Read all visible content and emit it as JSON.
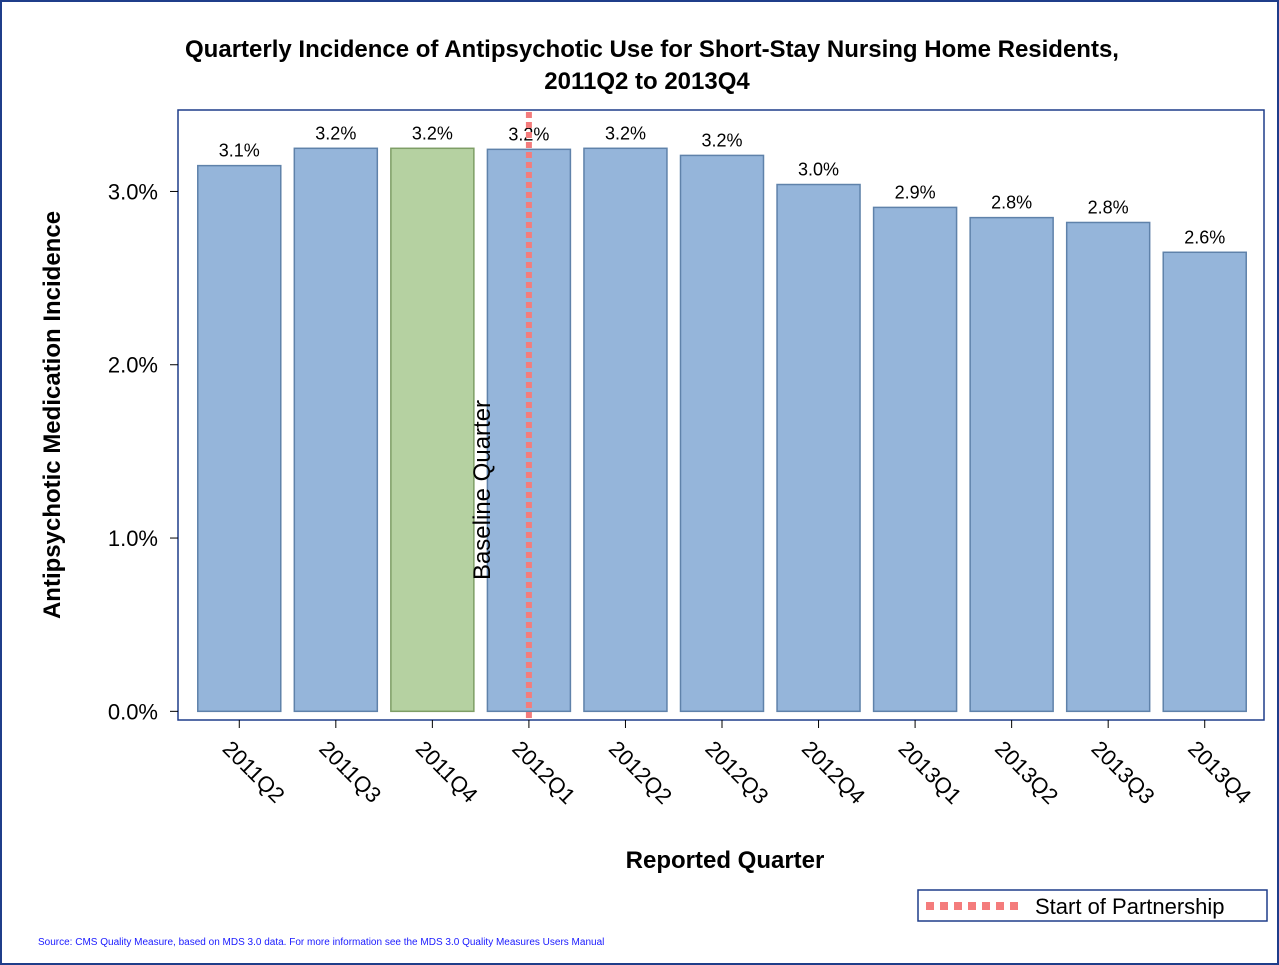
{
  "chart_data": {
    "type": "bar",
    "title": [
      "Quarterly Incidence of Antipsychotic Use for Short-Stay Nursing Home Residents,",
      "2011Q2 to 2013Q4"
    ],
    "x_label": "Reported Quarter",
    "y_label": "Antipsychotic Medication Incidence",
    "categories": [
      "2011Q2",
      "2011Q3",
      "2011Q4",
      "2012Q1",
      "2012Q2",
      "2012Q3",
      "2012Q4",
      "2013Q1",
      "2013Q2",
      "2013Q3",
      "2013Q4"
    ],
    "values": [
      3.149,
      3.249,
      3.249,
      3.243,
      3.249,
      3.208,
      3.04,
      2.908,
      2.849,
      2.821,
      2.649
    ],
    "value_labels": [
      "3.1%",
      "3.2%",
      "3.2%",
      "3.2%",
      "3.2%",
      "3.2%",
      "3.0%",
      "2.9%",
      "2.8%",
      "2.8%",
      "2.6%"
    ],
    "colors": [
      "#95b5da",
      "#95b5da",
      "#b5d1a1",
      "#95b5da",
      "#95b5da",
      "#95b5da",
      "#95b5da",
      "#95b5da",
      "#95b5da",
      "#95b5da",
      "#95b5da"
    ],
    "ylim": [
      -0.05,
      3.47
    ],
    "yticks": [
      {
        "value": 0,
        "label": "0.0%"
      },
      {
        "value": 1,
        "label": "1.0%"
      },
      {
        "value": 2,
        "label": "2.0%"
      },
      {
        "value": 3,
        "label": "3.0%"
      }
    ],
    "reference_line": {
      "x": 3.5,
      "color": "#f47c7c",
      "annotation": "Baseline Quarter",
      "legend": "Start of Partnership"
    },
    "source": "Source: CMS Quality Measure, based on MDS 3.0 data. For more information see the MDS 3.0 Quality Measures Users Manual"
  }
}
